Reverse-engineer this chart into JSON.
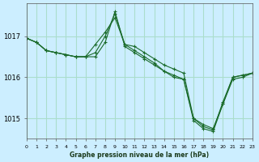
{
  "xlabel": "Graphe pression niveau de la mer (hPa)",
  "background_color": "#cceeff",
  "grid_color": "#aaddcc",
  "line_color": "#1a6b2a",
  "xlim": [
    0,
    23
  ],
  "ylim": [
    1014.5,
    1017.8
  ],
  "yticks": [
    1015,
    1016,
    1017
  ],
  "xticks": [
    0,
    1,
    2,
    3,
    4,
    5,
    6,
    7,
    8,
    9,
    10,
    11,
    12,
    13,
    14,
    15,
    16,
    17,
    18,
    19,
    20,
    21,
    22,
    23
  ],
  "series": [
    {
      "x": [
        0,
        1,
        2,
        3,
        4,
        5,
        6,
        7,
        8,
        9,
        10,
        11,
        12,
        13,
        14,
        15,
        16,
        17,
        18,
        19,
        20,
        21,
        22,
        23
      ],
      "y": [
        1016.95,
        1016.85,
        1016.65,
        1016.6,
        1016.55,
        1016.5,
        1016.5,
        1016.8,
        1017.1,
        1017.45,
        1016.8,
        1016.75,
        1016.6,
        1016.45,
        1016.3,
        1016.2,
        1016.1,
        1015.0,
        1014.85,
        1014.75,
        1015.35,
        1016.0,
        1016.05,
        1016.1
      ]
    },
    {
      "x": [
        0,
        1,
        2,
        3,
        4,
        5,
        6,
        7,
        8,
        9,
        10,
        11,
        12,
        13,
        14,
        15,
        16,
        17,
        18,
        19,
        20,
        21,
        22,
        23
      ],
      "y": [
        1016.95,
        1016.85,
        1016.65,
        1016.6,
        1016.55,
        1016.5,
        1016.5,
        1016.6,
        1017.0,
        1017.55,
        1016.8,
        1016.65,
        1016.5,
        1016.35,
        1016.15,
        1016.05,
        1015.95,
        1015.0,
        1014.8,
        1014.72,
        1015.4,
        1016.0,
        1016.05,
        1016.1
      ]
    },
    {
      "x": [
        0,
        1,
        2,
        3,
        4,
        5,
        6,
        7,
        8,
        9,
        10,
        11,
        12,
        13,
        14,
        15,
        16,
        17,
        18,
        19,
        20,
        21,
        22,
        23
      ],
      "y": [
        1016.95,
        1016.85,
        1016.65,
        1016.6,
        1016.55,
        1016.5,
        1016.5,
        1016.5,
        1016.85,
        1017.6,
        1016.75,
        1016.6,
        1016.45,
        1016.3,
        1016.15,
        1016.0,
        1015.95,
        1014.95,
        1014.75,
        1014.68,
        1015.35,
        1015.95,
        1016.0,
        1016.1
      ]
    }
  ]
}
